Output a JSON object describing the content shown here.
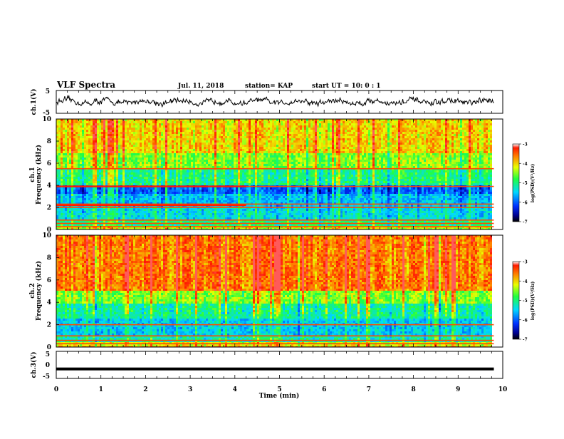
{
  "header": {
    "title": "VLF Spectra",
    "date": "Jul. 11, 2018",
    "station": "station= KAP",
    "start": "start UT = 10: 0 : 1"
  },
  "chart_data": [
    {
      "type": "line",
      "name": "ch1-waveform",
      "ylabel": "ch.1(V)",
      "ylim": [
        -5,
        5
      ],
      "yticks": [
        "5",
        "-5"
      ],
      "xlim": [
        0,
        10
      ],
      "data_end_min": 9.8,
      "line_color": "#000000",
      "note": "noisy waveform fluctuating roughly between -1.5 and 1.5 V"
    },
    {
      "type": "heatmap",
      "name": "ch1-spectrogram",
      "ylabel_line1": "ch.1",
      "ylabel_line2": "Frequency (kHz)",
      "ylim": [
        0,
        10
      ],
      "yticks": [
        "0",
        "2",
        "4",
        "6",
        "8",
        "10"
      ],
      "xlim": [
        0,
        10
      ],
      "data_end_min": 9.8,
      "colorbar": {
        "label": "log(PSD)(V²/Hz)",
        "range": [
          -7,
          -3
        ],
        "ticks": [
          "-3",
          "-4",
          "-5",
          "-6",
          "-7"
        ]
      },
      "bands_kHz": [
        {
          "from": 0,
          "to": 0.4,
          "level": -4.3
        },
        {
          "from": 0.4,
          "to": 1.0,
          "level": -5.0
        },
        {
          "from": 1.0,
          "to": 2.0,
          "level": -5.4
        },
        {
          "from": 2.0,
          "to": 3.3,
          "level": -5.6
        },
        {
          "from": 3.3,
          "to": 4.0,
          "level": -6.0
        },
        {
          "from": 4.0,
          "to": 5.5,
          "level": -5.0
        },
        {
          "from": 5.5,
          "to": 7.0,
          "level": -4.5
        },
        {
          "from": 7.0,
          "to": 10.0,
          "level": -4.0
        }
      ],
      "lines_kHz": [
        0.25,
        0.55,
        0.85,
        2.0,
        2.3,
        3.9,
        5.5
      ],
      "partial_lines": [
        {
          "f": 3.9,
          "until_min": 4.25
        },
        {
          "f": 2.2,
          "until_min": 4.25
        }
      ]
    },
    {
      "type": "heatmap",
      "name": "ch2-spectrogram",
      "ylabel_line1": "ch.2",
      "ylabel_line2": "Frequency (kHz)",
      "ylim": [
        0,
        10
      ],
      "yticks": [
        "0",
        "2",
        "4",
        "6",
        "8",
        "10"
      ],
      "xlim": [
        0,
        10
      ],
      "data_end_min": 9.8,
      "colorbar": {
        "label": "log(PSD)(V²/Hz)",
        "range": [
          -7,
          -3
        ],
        "ticks": [
          "-3",
          "-4",
          "-5",
          "-6",
          "-7"
        ]
      },
      "bands_kHz": [
        {
          "from": 0,
          "to": 0.4,
          "level": -4.2
        },
        {
          "from": 0.4,
          "to": 1.0,
          "level": -5.2
        },
        {
          "from": 1.0,
          "to": 2.5,
          "level": -5.5
        },
        {
          "from": 2.5,
          "to": 3.8,
          "level": -5.1
        },
        {
          "from": 3.8,
          "to": 5.0,
          "level": -4.5
        },
        {
          "from": 5.0,
          "to": 10.0,
          "level": -3.6
        }
      ],
      "lines_kHz": [
        0.3,
        0.6,
        1.0,
        2.0
      ],
      "partial_lines": []
    },
    {
      "type": "line",
      "name": "ch3-waveform",
      "ylabel": "ch.3(V)",
      "ylim": [
        -5,
        5
      ],
      "yticks": [
        "5",
        "0",
        "-5"
      ],
      "xlim": [
        0,
        10
      ],
      "xlabel": "Time (min)",
      "xticks": [
        "0",
        "1",
        "2",
        "3",
        "4",
        "5",
        "6",
        "7",
        "8",
        "9",
        "10"
      ],
      "data_end_min": 9.8,
      "constant_value": -1.5,
      "line_color": "#000000"
    }
  ]
}
